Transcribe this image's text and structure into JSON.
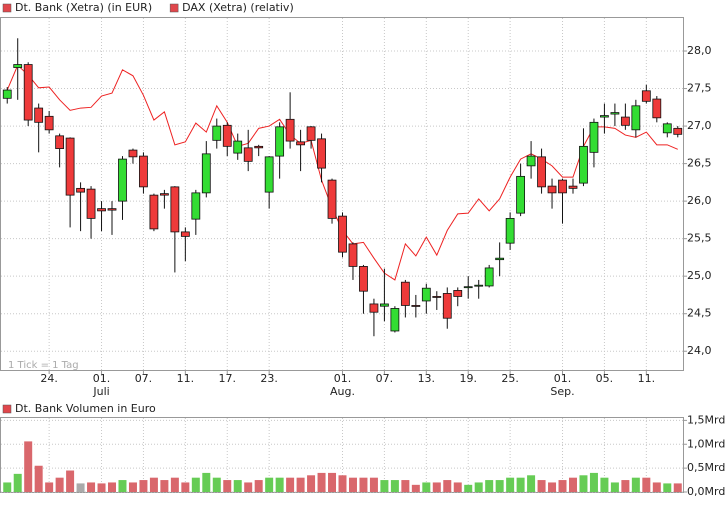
{
  "chart_data": [
    {
      "type": "candlestick",
      "legend": [
        {
          "name": "Dt. Bank (Xetra) (in EUR)",
          "color": "#e0474c"
        },
        {
          "name": "DAX (Xetra) (relativ)",
          "color": "#e0474c"
        }
      ],
      "note": "1 Tick = 1 Tag",
      "categories": [
        null,
        null,
        null,
        null,
        "24.",
        null,
        null,
        null,
        null,
        "01.",
        null,
        null,
        null,
        "07.",
        null,
        null,
        null,
        "11.",
        null,
        null,
        null,
        "17.",
        null,
        null,
        null,
        "23.",
        null,
        null,
        null,
        null,
        null,
        null,
        "01.",
        null,
        null,
        null,
        "07.",
        null,
        null,
        null,
        "13.",
        null,
        null,
        null,
        "19.",
        null,
        null,
        null,
        "25.",
        null,
        null,
        null,
        null,
        "01.",
        null,
        null,
        null,
        "05.",
        null,
        null,
        null,
        "11.",
        null,
        null,
        null
      ],
      "months": [
        null,
        null,
        null,
        null,
        null,
        null,
        null,
        null,
        null,
        "Juli",
        null,
        null,
        null,
        null,
        null,
        null,
        null,
        null,
        null,
        null,
        null,
        null,
        null,
        null,
        null,
        null,
        null,
        null,
        null,
        null,
        null,
        null,
        "Aug.",
        null,
        null,
        null,
        null,
        null,
        null,
        null,
        null,
        null,
        null,
        null,
        null,
        null,
        null,
        null,
        null,
        null,
        null,
        null,
        null,
        "Sep.",
        null,
        null,
        null,
        null,
        null,
        null,
        null,
        null,
        null,
        null,
        null
      ],
      "open": [
        27.37,
        27.78,
        27.82,
        27.24,
        27.13,
        26.87,
        26.84,
        26.17,
        26.16,
        25.9,
        25.9,
        26.0,
        26.68,
        26.6,
        26.08,
        26.1,
        26.19,
        25.59,
        25.76,
        26.11,
        26.81,
        27.01,
        26.64,
        26.71,
        26.73,
        26.12,
        26.6,
        27.09,
        26.79,
        26.99,
        26.83,
        26.28,
        25.8,
        25.43,
        25.13,
        24.63,
        24.6,
        24.27,
        24.92,
        24.61,
        24.67,
        24.73,
        24.77,
        24.81,
        24.85,
        24.87,
        24.87,
        25.22,
        25.44,
        25.84,
        26.47,
        26.59,
        26.2,
        26.28,
        26.2,
        26.24,
        26.65,
        27.12,
        27.16,
        27.12,
        26.95,
        27.47,
        27.36,
        26.91,
        26.97
      ],
      "high": [
        27.52,
        28.17,
        27.85,
        27.3,
        27.2,
        26.9,
        26.85,
        26.25,
        26.2,
        26.0,
        26.0,
        26.6,
        26.7,
        26.65,
        26.1,
        26.15,
        26.2,
        25.65,
        26.15,
        26.8,
        27.1,
        27.05,
        26.9,
        26.95,
        26.75,
        26.6,
        27.05,
        27.45,
        26.95,
        27.0,
        26.9,
        26.3,
        25.85,
        25.45,
        25.15,
        24.7,
        25.1,
        24.6,
        24.95,
        24.75,
        24.9,
        24.8,
        24.85,
        24.85,
        25.0,
        24.95,
        25.15,
        25.45,
        25.85,
        26.5,
        26.8,
        26.7,
        26.3,
        26.3,
        26.3,
        26.97,
        27.1,
        27.3,
        27.3,
        27.3,
        27.35,
        27.55,
        27.4,
        27.05,
        27.0
      ],
      "low": [
        27.3,
        27.35,
        27.0,
        26.65,
        26.9,
        26.45,
        25.65,
        25.6,
        25.5,
        25.6,
        25.55,
        25.75,
        26.5,
        26.1,
        25.6,
        25.9,
        25.05,
        25.2,
        25.55,
        26.05,
        26.7,
        26.6,
        26.55,
        26.4,
        26.6,
        25.9,
        26.3,
        26.7,
        26.4,
        26.7,
        26.25,
        25.7,
        25.25,
        24.95,
        24.5,
        24.2,
        24.4,
        24.25,
        24.45,
        24.45,
        24.5,
        24.55,
        24.3,
        24.6,
        24.7,
        24.7,
        24.85,
        25.0,
        25.35,
        25.8,
        26.3,
        26.1,
        25.9,
        25.7,
        26.1,
        26.2,
        26.45,
        26.9,
        27.0,
        26.95,
        26.85,
        27.3,
        27.05,
        26.85,
        26.85
      ],
      "close": [
        27.48,
        27.82,
        27.08,
        27.05,
        26.95,
        26.7,
        26.08,
        26.12,
        25.77,
        25.87,
        25.88,
        26.56,
        26.59,
        26.19,
        25.63,
        26.08,
        25.59,
        25.53,
        26.11,
        26.63,
        27.0,
        26.73,
        26.8,
        26.53,
        26.71,
        26.59,
        26.99,
        26.8,
        26.75,
        26.81,
        26.44,
        25.77,
        25.32,
        25.13,
        24.8,
        24.52,
        24.63,
        24.57,
        24.61,
        24.6,
        24.84,
        24.72,
        24.44,
        24.73,
        24.86,
        24.88,
        25.11,
        25.24,
        25.77,
        26.33,
        26.6,
        26.19,
        26.11,
        26.11,
        26.17,
        26.73,
        27.05,
        27.14,
        27.18,
        27.01,
        27.27,
        27.33,
        27.11,
        27.03,
        26.89
      ],
      "up_color": "#33dd33",
      "down_color": "#ee3a3a",
      "line": {
        "values": [
          27.48,
          27.81,
          27.68,
          27.51,
          27.52,
          27.35,
          27.21,
          27.24,
          27.25,
          27.4,
          27.44,
          27.75,
          27.67,
          27.41,
          27.08,
          27.19,
          26.75,
          26.79,
          27.04,
          26.92,
          27.27,
          27.05,
          26.73,
          26.77,
          26.97,
          27.0,
          27.09,
          26.88,
          26.77,
          26.81,
          26.28,
          25.91,
          25.61,
          25.43,
          25.45,
          25.24,
          25.04,
          24.95,
          25.43,
          25.27,
          25.52,
          25.28,
          25.61,
          25.83,
          25.84,
          26.03,
          25.87,
          26.03,
          26.32,
          26.56,
          26.63,
          26.56,
          26.47,
          26.32,
          26.32,
          26.73,
          26.99,
          26.99,
          26.97,
          26.88,
          26.85,
          26.92,
          26.75,
          26.75,
          26.69
        ],
        "color": "#ee2222"
      },
      "ylim": [
        23.75,
        28.44
      ],
      "yticks": [
        {
          "value": 24,
          "label": "24,0"
        },
        {
          "value": 24.5,
          "label": "24,5"
        },
        {
          "value": 25,
          "label": "25,0"
        },
        {
          "value": 25.5,
          "label": "25,5"
        },
        {
          "value": 26,
          "label": "26,0"
        },
        {
          "value": 26.5,
          "label": "26,5"
        },
        {
          "value": 27,
          "label": "27,0"
        },
        {
          "value": 27.5,
          "label": "27,5"
        },
        {
          "value": 28,
          "label": "28,0"
        }
      ],
      "grid": true
    },
    {
      "type": "bar",
      "legend": [
        {
          "name": "Dt. Bank Volumen in Euro",
          "color": "#e0474c"
        }
      ],
      "values": [
        0.2,
        0.38,
        1.06,
        0.55,
        0.2,
        0.3,
        0.45,
        0.18,
        0.2,
        0.18,
        0.2,
        0.25,
        0.2,
        0.25,
        0.3,
        0.25,
        0.3,
        0.2,
        0.3,
        0.4,
        0.3,
        0.25,
        0.25,
        0.2,
        0.25,
        0.3,
        0.3,
        0.3,
        0.3,
        0.35,
        0.4,
        0.4,
        0.35,
        0.3,
        0.3,
        0.3,
        0.25,
        0.25,
        0.25,
        0.15,
        0.2,
        0.2,
        0.25,
        0.2,
        0.15,
        0.2,
        0.25,
        0.25,
        0.3,
        0.3,
        0.35,
        0.25,
        0.2,
        0.25,
        0.3,
        0.35,
        0.4,
        0.3,
        0.2,
        0.25,
        0.3,
        0.3,
        0.2,
        0.18,
        0.18
      ],
      "colors": [
        "#66cc55",
        "#66cc55",
        "#d9676c",
        "#d9676c",
        "#d9676c",
        "#d9676c",
        "#d9676c",
        "#aaaaaa",
        "#d9676c",
        "#d9676c",
        "#d9676c",
        "#66cc55",
        "#d9676c",
        "#d9676c",
        "#d9676c",
        "#d9676c",
        "#d9676c",
        "#d9676c",
        "#66cc55",
        "#66cc55",
        "#66cc55",
        "#d9676c",
        "#66cc55",
        "#d9676c",
        "#d9676c",
        "#66cc55",
        "#66cc55",
        "#d9676c",
        "#d9676c",
        "#d9676c",
        "#d9676c",
        "#d9676c",
        "#d9676c",
        "#d9676c",
        "#d9676c",
        "#d9676c",
        "#66cc55",
        "#66cc55",
        "#d9676c",
        "#d9676c",
        "#66cc55",
        "#d9676c",
        "#d9676c",
        "#d9676c",
        "#66cc55",
        "#66cc55",
        "#66cc55",
        "#66cc55",
        "#66cc55",
        "#66cc55",
        "#66cc55",
        "#d9676c",
        "#d9676c",
        "#d9676c",
        "#d9676c",
        "#66cc55",
        "#66cc55",
        "#66cc55",
        "#66cc55",
        "#d9676c",
        "#66cc55",
        "#d9676c",
        "#d9676c",
        "#66cc55",
        "#d9676c"
      ],
      "ylim": [
        0,
        1.55
      ],
      "yticks": [
        {
          "value": 0,
          "label": "0,0Mrd"
        },
        {
          "value": 0.5,
          "label": "0,5Mrd"
        },
        {
          "value": 1,
          "label": "1,0Mrd"
        },
        {
          "value": 1.5,
          "label": "1,5Mrd"
        }
      ],
      "grid": true
    }
  ]
}
